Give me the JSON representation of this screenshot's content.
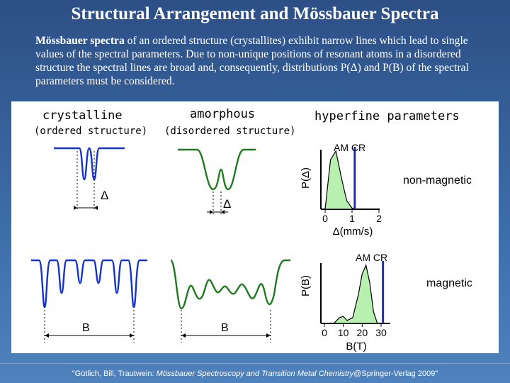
{
  "title": "Structural Arrangement and Mössbauer Spectra",
  "intro": {
    "bold": "Mössbauer spectra",
    "text": " of an ordered structure (crystallites) exhibit narrow lines which lead to single values of the spectral parameters. Due to non-unique positions of resonant atoms in a disordered structure the spectral lines are broad and, consequently, distributions P(Δ) and P(B) of the spectral parameters must be considered."
  },
  "columns": {
    "crystalline": "crystalline",
    "crystalline_sub": "(ordered structure)",
    "amorphous": "amorphous",
    "amorphous_sub": "(disordered structure)",
    "hyperfine": "hyperfine parameters"
  },
  "labels": {
    "delta": "Δ",
    "b": "B",
    "am_cr": "AM CR",
    "non_magnetic": "non-magnetic",
    "magnetic": "magnetic"
  },
  "colors": {
    "crystalline": "#1533c8",
    "amorphous": "#1f7a1f",
    "distribution_fill": "#b8f0b0",
    "cr_line": "#1d2fb0"
  },
  "chart_data": [
    {
      "type": "area",
      "ylabel": "P(Δ)",
      "xlabel": "Δ(mm/s)",
      "xticks": [
        "0",
        "1",
        "2"
      ],
      "xlim": [
        0,
        2
      ],
      "distribution": {
        "x": [
          0.0,
          0.2,
          0.4,
          0.6,
          0.8,
          1.0,
          1.2
        ],
        "y": [
          0.0,
          0.85,
          1.0,
          0.55,
          0.15,
          0.02,
          0.0
        ]
      },
      "crystalline_value": 1.1
    },
    {
      "type": "area",
      "ylabel": "P(B)",
      "xlabel": "B(T)",
      "xticks": [
        "0",
        "10",
        "20",
        "30"
      ],
      "xlim": [
        0,
        30
      ],
      "distribution": {
        "x": [
          0,
          5,
          8,
          10,
          12,
          15,
          18,
          20,
          22,
          24,
          26,
          28
        ],
        "y": [
          0.0,
          0.0,
          0.1,
          0.12,
          0.05,
          0.1,
          0.5,
          0.85,
          1.0,
          0.7,
          0.2,
          0.0
        ]
      },
      "crystalline_value": 31
    }
  ],
  "footer": {
    "authors": "\"Gütlich, Bill, Trautwein: ",
    "book": "Mössbauer Spectroscopy and Transition Metal Chemistry",
    "publisher": "@Springer-Verlag 2009\""
  }
}
